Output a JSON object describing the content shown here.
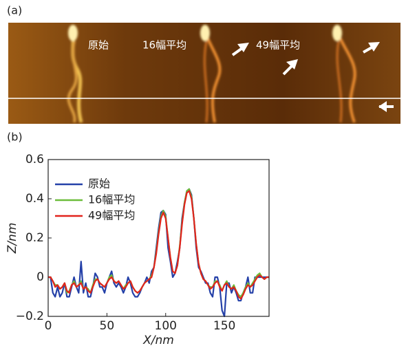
{
  "panel_a": {
    "label": "(a)",
    "captions": [
      "原始",
      "16幅平均",
      "49幅平均"
    ]
  },
  "chart_data": {
    "type": "line",
    "panel_label": "(b)",
    "xlabel": "X/nm",
    "ylabel": "Z/nm",
    "xlim": [
      0,
      188
    ],
    "xticks": [
      0,
      50,
      100,
      150
    ],
    "ylim": [
      -0.2,
      0.6
    ],
    "yticks": [
      {
        "value": -0.2,
        "label": "−0.2"
      },
      0,
      0.2,
      0.4,
      0.6
    ],
    "legend": "upper left",
    "x": [
      0,
      2,
      4,
      6,
      8,
      10,
      12,
      14,
      16,
      18,
      20,
      22,
      24,
      26,
      28,
      30,
      32,
      34,
      36,
      38,
      40,
      42,
      44,
      46,
      48,
      50,
      52,
      54,
      56,
      58,
      60,
      62,
      64,
      66,
      68,
      70,
      72,
      74,
      76,
      78,
      80,
      82,
      84,
      86,
      88,
      90,
      92,
      94,
      96,
      98,
      100,
      102,
      104,
      106,
      108,
      110,
      112,
      114,
      116,
      118,
      120,
      122,
      124,
      126,
      128,
      130,
      132,
      134,
      136,
      138,
      140,
      142,
      144,
      146,
      148,
      150,
      152,
      154,
      156,
      158,
      160,
      162,
      164,
      166,
      168,
      170,
      172,
      174,
      176,
      178,
      180,
      182,
      184,
      186,
      188
    ],
    "series": [
      {
        "name": "原始",
        "color": "#2440a8",
        "values": [
          0,
          0,
          -0.08,
          -0.1,
          -0.05,
          -0.1,
          -0.08,
          -0.03,
          -0.1,
          -0.1,
          -0.05,
          0,
          -0.05,
          -0.08,
          0.08,
          -0.08,
          -0.03,
          -0.1,
          -0.1,
          -0.05,
          0.02,
          0,
          -0.05,
          -0.05,
          -0.08,
          -0.03,
          0,
          0.03,
          -0.03,
          -0.05,
          -0.03,
          -0.05,
          -0.08,
          -0.05,
          0,
          -0.03,
          -0.08,
          -0.1,
          -0.1,
          -0.08,
          -0.05,
          -0.03,
          0,
          -0.03,
          0.03,
          0.05,
          0.15,
          0.25,
          0.33,
          0.34,
          0.32,
          0.15,
          0.08,
          0,
          0.02,
          0.08,
          0.15,
          0.3,
          0.38,
          0.44,
          0.45,
          0.42,
          0.3,
          0.15,
          0.05,
          0.03,
          0,
          -0.03,
          -0.03,
          -0.08,
          -0.1,
          0,
          0,
          -0.05,
          -0.17,
          -0.2,
          -0.03,
          -0.03,
          -0.08,
          -0.05,
          -0.08,
          -0.12,
          -0.12,
          -0.08,
          -0.05,
          0,
          -0.08,
          -0.08,
          0,
          0,
          0,
          0,
          0,
          0,
          0
        ]
      },
      {
        "name": "16幅平均",
        "color": "#6cbd3b",
        "values": [
          0,
          0,
          -0.02,
          -0.04,
          -0.04,
          -0.06,
          -0.05,
          -0.03,
          -0.08,
          -0.07,
          -0.04,
          -0.02,
          -0.05,
          -0.04,
          -0.02,
          -0.06,
          -0.05,
          -0.06,
          -0.08,
          -0.04,
          -0.01,
          -0.01,
          -0.03,
          -0.04,
          -0.05,
          -0.03,
          0,
          0.01,
          -0.02,
          -0.03,
          -0.02,
          -0.04,
          -0.06,
          -0.04,
          -0.03,
          -0.02,
          -0.05,
          -0.07,
          -0.08,
          -0.07,
          -0.05,
          -0.03,
          -0.02,
          -0.01,
          0.01,
          0.05,
          0.13,
          0.23,
          0.31,
          0.34,
          0.31,
          0.2,
          0.1,
          0.03,
          0.02,
          0.06,
          0.16,
          0.28,
          0.38,
          0.44,
          0.45,
          0.41,
          0.3,
          0.17,
          0.07,
          0.02,
          -0.01,
          -0.02,
          -0.04,
          -0.05,
          -0.05,
          -0.02,
          -0.02,
          -0.04,
          -0.07,
          -0.04,
          -0.02,
          -0.05,
          -0.06,
          -0.04,
          -0.07,
          -0.09,
          -0.1,
          -0.08,
          -0.05,
          -0.03,
          -0.05,
          -0.03,
          -0.01,
          0.01,
          0.02,
          0,
          -0.01,
          0,
          0
        ]
      },
      {
        "name": "49幅平均",
        "color": "#e1231c",
        "values": [
          0,
          0,
          -0.02,
          -0.05,
          -0.04,
          -0.06,
          -0.05,
          -0.03,
          -0.07,
          -0.08,
          -0.04,
          -0.03,
          -0.05,
          -0.04,
          -0.03,
          -0.06,
          -0.05,
          -0.07,
          -0.08,
          -0.05,
          -0.02,
          -0.01,
          -0.03,
          -0.04,
          -0.05,
          -0.03,
          -0.01,
          0,
          -0.02,
          -0.03,
          -0.02,
          -0.04,
          -0.06,
          -0.05,
          -0.03,
          -0.02,
          -0.05,
          -0.07,
          -0.08,
          -0.07,
          -0.05,
          -0.03,
          -0.02,
          -0.01,
          0,
          0.05,
          0.12,
          0.22,
          0.3,
          0.33,
          0.3,
          0.2,
          0.1,
          0.03,
          0.02,
          0.06,
          0.15,
          0.27,
          0.37,
          0.43,
          0.44,
          0.4,
          0.3,
          0.17,
          0.07,
          0.02,
          -0.01,
          -0.02,
          -0.04,
          -0.06,
          -0.05,
          -0.03,
          -0.02,
          -0.05,
          -0.07,
          -0.04,
          -0.03,
          -0.05,
          -0.06,
          -0.05,
          -0.07,
          -0.1,
          -0.11,
          -0.09,
          -0.06,
          -0.04,
          -0.05,
          -0.04,
          -0.02,
          0,
          0.01,
          0,
          -0.01,
          0,
          0
        ]
      }
    ]
  }
}
